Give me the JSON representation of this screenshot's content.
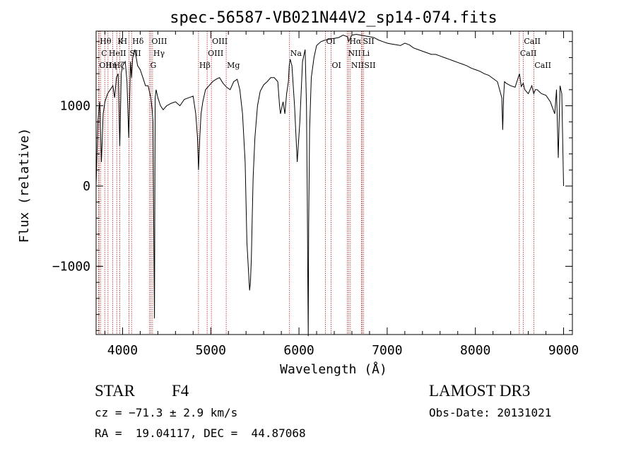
{
  "chart_data": {
    "type": "line",
    "title": "spec-56587-VB021N44V2_sp14-074.fits",
    "xlabel": "Wavelength (Å)",
    "ylabel": "Flux (relative)",
    "xlim": [
      3700,
      9100
    ],
    "ylim": [
      -1850,
      1930
    ],
    "x_ticks": [
      4000,
      5000,
      6000,
      7000,
      8000,
      9000
    ],
    "y_ticks": [
      -1000,
      0,
      1000
    ],
    "grid": false,
    "line_color": "#000000",
    "marker_color": "#b22222",
    "series": [
      {
        "x": [
          3700,
          3720,
          3740,
          3760,
          3780,
          3800,
          3830,
          3860,
          3890,
          3910,
          3930,
          3950,
          3968,
          3985,
          4000,
          4030,
          4050,
          4070,
          4090,
          4102,
          4115,
          4140,
          4170,
          4200,
          4230,
          4260,
          4290,
          4320,
          4335,
          4345,
          4355,
          4362,
          4370,
          4380,
          4400,
          4430,
          4460,
          4500,
          4550,
          4600,
          4650,
          4700,
          4750,
          4800,
          4830,
          4850,
          4861,
          4875,
          4890,
          4910,
          4940,
          4980,
          5020,
          5060,
          5100,
          5140,
          5180,
          5220,
          5260,
          5300,
          5330,
          5360,
          5390,
          5410,
          5430,
          5440,
          5450,
          5460,
          5470,
          5480,
          5500,
          5530,
          5560,
          5600,
          5640,
          5680,
          5720,
          5760,
          5780,
          5790,
          5800,
          5820,
          5840,
          5860,
          5880,
          5890,
          5900,
          5920,
          5950,
          5980,
          6010,
          6040,
          6070,
          6085,
          6095,
          6100,
          6105,
          6110,
          6120,
          6140,
          6170,
          6200,
          6250,
          6300,
          6350,
          6400,
          6450,
          6500,
          6550,
          6563,
          6580,
          6600,
          6650,
          6700,
          6750,
          6800,
          6850,
          6900,
          6950,
          7000,
          7050,
          7100,
          7150,
          7200,
          7250,
          7300,
          7350,
          7400,
          7450,
          7500,
          7550,
          7600,
          7650,
          7700,
          7750,
          7800,
          7850,
          7900,
          7950,
          8000,
          8050,
          8100,
          8150,
          8200,
          8250,
          8300,
          8310,
          8320,
          8330,
          8350,
          8400,
          8450,
          8500,
          8520,
          8542,
          8560,
          8600,
          8640,
          8662,
          8680,
          8700,
          8750,
          8800,
          8850,
          8900,
          8920,
          8940,
          8960,
          8980,
          9000
        ],
        "y": [
          0,
          800,
          1050,
          300,
          900,
          1050,
          1150,
          1200,
          1250,
          1100,
          1350,
          1400,
          500,
          1400,
          1500,
          1550,
          1300,
          600,
          1550,
          1350,
          1600,
          1700,
          1500,
          1450,
          1350,
          1250,
          1250,
          1100,
          950,
          800,
          -800,
          -1650,
          1100,
          1200,
          1100,
          1000,
          950,
          1000,
          1030,
          1050,
          1000,
          1080,
          1100,
          1120,
          900,
          600,
          200,
          600,
          900,
          1050,
          1200,
          1250,
          1300,
          1330,
          1350,
          1280,
          1230,
          1200,
          1300,
          1330,
          1200,
          900,
          300,
          -700,
          -1100,
          -1300,
          -1200,
          -900,
          -400,
          100,
          600,
          1000,
          1180,
          1260,
          1300,
          1350,
          1350,
          1300,
          1000,
          900,
          950,
          1050,
          900,
          1150,
          1300,
          1500,
          1580,
          1500,
          1000,
          300,
          800,
          1550,
          1700,
          1000,
          -200,
          -1200,
          -1870,
          -500,
          700,
          1350,
          1600,
          1750,
          1800,
          1820,
          1830,
          1840,
          1850,
          1880,
          1860,
          1800,
          1840,
          1880,
          1890,
          1880,
          1870,
          1860,
          1850,
          1820,
          1800,
          1780,
          1770,
          1760,
          1750,
          1780,
          1760,
          1720,
          1700,
          1680,
          1660,
          1640,
          1640,
          1620,
          1600,
          1580,
          1560,
          1540,
          1520,
          1500,
          1470,
          1450,
          1430,
          1400,
          1380,
          1340,
          1300,
          1100,
          700,
          1100,
          1300,
          1280,
          1250,
          1230,
          1400,
          1240,
          1280,
          1200,
          1150,
          1250,
          1150,
          1200,
          1200,
          1150,
          1130,
          1050,
          900,
          1200,
          350,
          1250,
          1150,
          0
        ]
      }
    ],
    "line_markers": [
      {
        "x": 3734,
        "label": "Hθ",
        "row": 1
      },
      {
        "x": 3727,
        "label": "OII",
        "row": 3
      },
      {
        "x": 3750,
        "label": "C",
        "row": 2
      },
      {
        "x": 3798,
        "label": "Hη",
        "row": 3
      },
      {
        "x": 3835,
        "label": "HeII",
        "row": 2
      },
      {
        "x": 3889,
        "label": "Hζ",
        "row": 3
      },
      {
        "x": 3934,
        "label": "K",
        "row": 1
      },
      {
        "x": 3968,
        "label": "H",
        "row": 1
      },
      {
        "x": 4072,
        "label": "SII",
        "row": 2
      },
      {
        "x": 4102,
        "label": "Hδ",
        "row": 1
      },
      {
        "x": 4320,
        "label": "OIII",
        "row": 1
      },
      {
        "x": 4340,
        "label": "Hγ",
        "row": 2
      },
      {
        "x": 4305,
        "label": "G",
        "row": 3
      },
      {
        "x": 4861,
        "label": "Hβ",
        "row": 3
      },
      {
        "x": 4959,
        "label": "OIII",
        "row": 2
      },
      {
        "x": 5007,
        "label": "OIII",
        "row": 1
      },
      {
        "x": 5175,
        "label": "Mg",
        "row": 3
      },
      {
        "x": 5893,
        "label": "Na",
        "row": 2
      },
      {
        "x": 6300,
        "label": "OI",
        "row": 1
      },
      {
        "x": 6364,
        "label": "OI",
        "row": 3
      },
      {
        "x": 6548,
        "label": "NII",
        "row": 2
      },
      {
        "x": 6563,
        "label": "Hα",
        "row": 1
      },
      {
        "x": 6583,
        "label": "NII",
        "row": 3
      },
      {
        "x": 6707,
        "label": "Li",
        "row": 2
      },
      {
        "x": 6716,
        "label": "SII",
        "row": 1
      },
      {
        "x": 6731,
        "label": "SII",
        "row": 3
      },
      {
        "x": 8498,
        "label": "CaII",
        "row": 2
      },
      {
        "x": 8542,
        "label": "CaII",
        "row": 1
      },
      {
        "x": 8662,
        "label": "CaII",
        "row": 3
      }
    ]
  },
  "info": {
    "object_class": "STAR",
    "subclass": "F4",
    "survey": "LAMOST DR3",
    "redshift": "cz = −71.3 ± 2.9 km/s",
    "obs_date": "Obs-Date: 20131021",
    "coords": "RA =  19.04117, DEC =  44.87068"
  }
}
